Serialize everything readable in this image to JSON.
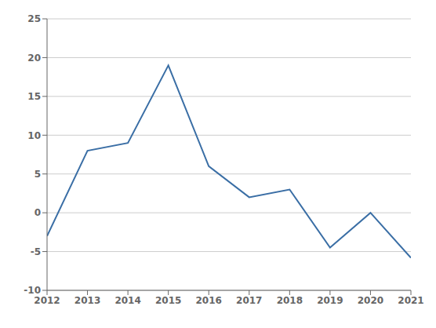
{
  "chart_data": {
    "type": "line",
    "x": [
      2012,
      2013,
      2014,
      2015,
      2016,
      2017,
      2018,
      2019,
      2020,
      2021
    ],
    "values": [
      -3.0,
      8.0,
      9.0,
      19.0,
      6.0,
      2.0,
      3.0,
      -4.5,
      0.0,
      -5.8
    ],
    "color": "#3A6EA5",
    "xlim": [
      2012,
      2021
    ],
    "xticks": [
      2012,
      2013,
      2014,
      2015,
      2016,
      2017,
      2018,
      2019,
      2020,
      2021
    ],
    "ylim": [
      -10,
      25
    ],
    "yticks": [
      -10,
      -5,
      0,
      5,
      10,
      15,
      20,
      25
    ],
    "grid": true
  }
}
